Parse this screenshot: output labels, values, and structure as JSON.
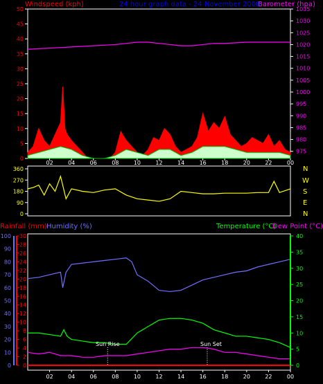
{
  "colors": {
    "background": "#000000",
    "frame": "#ffffff",
    "wind_speed": "#ff0000",
    "wind_gust_fill": "#ccffcc",
    "wind_avg": "#00c000",
    "barometer": "#ff00ff",
    "direction": "#ffff00",
    "title": "#0000ff",
    "rainfall": "#ff0000",
    "humidity": "#7070ff",
    "temperature": "#00ff00",
    "dew_point": "#ff00ff",
    "sun_marker": "#ffffff"
  },
  "header": {
    "windspeed_label": "Windspeed (kph)",
    "title": "24 hour graph data - 24 November 2008",
    "barometer_label": "Barometer (hpa)"
  },
  "bottom_labels": {
    "rainfall": "Rainfall (mm)",
    "humidity": "Humidity (%)",
    "temperature": "Temperature (°C)",
    "dew_point": "Dew Point (°C)",
    "sun_rise": "Sun Rise",
    "sun_set": "Sun Set"
  },
  "direction_letters": [
    "N",
    "W",
    "S",
    "E",
    "N"
  ],
  "chart_data": [
    {
      "type": "line",
      "name": "wind-barometer",
      "x_hours": [
        0,
        24
      ],
      "x_tick_labels": [
        "02",
        "04",
        "06",
        "08",
        "10",
        "12",
        "14",
        "16",
        "18",
        "20",
        "22",
        "00"
      ],
      "left_axis": {
        "label": "Windspeed (kph)",
        "ylim": [
          0,
          50
        ],
        "ticks": [
          "0",
          "5",
          "10",
          "15",
          "20",
          "25",
          "30",
          "35",
          "40",
          "45",
          "50"
        ]
      },
      "right_axis": {
        "label": "Barometer (hpa)",
        "ylim": [
          972,
          1035
        ],
        "ticks": [
          "975",
          "980",
          "985",
          "990",
          "995",
          "1000",
          "1005",
          "1010",
          "1015",
          "1020",
          "1025",
          "1030",
          "1035"
        ]
      },
      "barometer": {
        "x": [
          0,
          2,
          4,
          6,
          8,
          9,
          10,
          11,
          12,
          13,
          14,
          15,
          16,
          17,
          18,
          20,
          22,
          24
        ],
        "y": [
          1018,
          1018.5,
          1019,
          1019.5,
          1020,
          1020.5,
          1021,
          1021,
          1020.5,
          1020,
          1019.5,
          1019.5,
          1020,
          1020.5,
          1020.5,
          1021,
          1021,
          1021
        ]
      },
      "wind_gust": {
        "x": [
          0,
          0.5,
          1,
          1.5,
          2,
          2.5,
          3,
          3.2,
          3.4,
          3.6,
          4,
          4.5,
          5,
          5.5,
          6,
          6.5,
          7,
          7.5,
          8,
          8.5,
          9,
          9.5,
          10,
          10.5,
          11,
          11.5,
          12,
          12.5,
          13,
          13.5,
          14,
          14.5,
          15,
          15.5,
          16,
          16.5,
          17,
          17.5,
          18,
          18.5,
          19,
          19.5,
          20,
          20.5,
          21,
          21.5,
          22,
          22.5,
          23,
          23.5,
          24
        ],
        "y": [
          2,
          4,
          10,
          6,
          4,
          8,
          12,
          24,
          10,
          8,
          6,
          4,
          2,
          0,
          0,
          0,
          0,
          0,
          2,
          9,
          6,
          4,
          2,
          1,
          3,
          7,
          6,
          10,
          8,
          4,
          2,
          3,
          4,
          7,
          15,
          9,
          12,
          10,
          14,
          8,
          6,
          4,
          5,
          7,
          6,
          5,
          8,
          4,
          6,
          3,
          2
        ]
      },
      "wind_avg": {
        "x": [
          0,
          1,
          2,
          3,
          4,
          5,
          6,
          7,
          8,
          9,
          10,
          11,
          12,
          13,
          14,
          15,
          16,
          17,
          18,
          19,
          20,
          21,
          22,
          23,
          24
        ],
        "y": [
          1,
          2,
          3,
          4,
          3,
          1,
          0,
          0,
          1,
          3,
          2,
          1,
          3,
          3,
          1,
          2,
          4,
          4,
          4,
          3,
          2,
          2,
          2,
          2,
          1
        ]
      }
    },
    {
      "type": "line",
      "name": "wind-direction",
      "ylim": [
        0,
        360
      ],
      "ticks": [
        "0",
        "90",
        "180",
        "270",
        "360"
      ],
      "x": [
        0,
        0.5,
        1,
        1.5,
        2,
        2.5,
        3,
        3.5,
        4,
        5,
        6,
        7,
        8,
        9,
        10,
        11,
        12,
        13,
        14,
        15,
        16,
        17,
        18,
        19,
        20,
        21,
        22,
        22.5,
        23,
        24
      ],
      "y": [
        200,
        210,
        230,
        150,
        240,
        180,
        300,
        120,
        200,
        180,
        170,
        190,
        200,
        150,
        120,
        110,
        100,
        120,
        180,
        170,
        160,
        160,
        165,
        165,
        165,
        170,
        170,
        260,
        170,
        200
      ]
    },
    {
      "type": "line",
      "name": "temp-humidity",
      "x_tick_labels": [
        "02",
        "04",
        "06",
        "08",
        "10",
        "12",
        "14",
        "16",
        "18",
        "20",
        "22",
        "00"
      ],
      "humidity_axis": {
        "ylim": [
          0,
          100
        ],
        "ticks": [
          "0",
          "10",
          "20",
          "30",
          "40",
          "50",
          "60",
          "70",
          "80",
          "90",
          "100"
        ]
      },
      "rainfall_axis": {
        "ylim": [
          0,
          30
        ],
        "ticks": [
          "0",
          "2",
          "4",
          "6",
          "8",
          "10",
          "12",
          "14",
          "16",
          "18",
          "20",
          "22",
          "24",
          "26",
          "28",
          "30"
        ]
      },
      "temperature_axis": {
        "ylim": [
          0,
          40
        ],
        "ticks": [
          "0",
          "5",
          "10",
          "15",
          "20",
          "25",
          "30",
          "35",
          "40"
        ]
      },
      "humidity": {
        "x": [
          0,
          1,
          2,
          3,
          3.2,
          3.5,
          4,
          5,
          6,
          7,
          8,
          9,
          9.5,
          10,
          11,
          12,
          13,
          14,
          15,
          16,
          17,
          18,
          19,
          20,
          21,
          22,
          23,
          24
        ],
        "y": [
          67,
          68,
          70,
          72,
          60,
          72,
          78,
          79,
          80,
          81,
          82,
          83,
          80,
          70,
          65,
          58,
          57,
          58,
          62,
          66,
          68,
          70,
          72,
          73,
          76,
          78,
          80,
          82
        ]
      },
      "temperature": {
        "x": [
          0,
          1,
          2,
          3,
          3.3,
          3.6,
          4,
          5,
          6,
          7,
          8,
          9,
          10,
          11,
          12,
          13,
          14,
          15,
          16,
          17,
          18,
          19,
          20,
          21,
          22,
          23,
          24
        ],
        "y": [
          10,
          10,
          9.5,
          9,
          11,
          9,
          8,
          7.5,
          7,
          7,
          6.5,
          6.5,
          10,
          12,
          14,
          14.5,
          14.5,
          14,
          13,
          11,
          10,
          9,
          9,
          8.5,
          8,
          7,
          5.5
        ]
      },
      "dew_point": {
        "x": [
          0,
          1,
          2,
          3,
          4,
          5,
          6,
          7,
          8,
          9,
          10,
          11,
          12,
          13,
          14,
          15,
          16,
          17,
          18,
          19,
          20,
          21,
          22,
          23,
          24
        ],
        "y": [
          4,
          3.5,
          4,
          3,
          3,
          2.5,
          2.5,
          3,
          3,
          3,
          3.5,
          4,
          4.5,
          5,
          5,
          5.5,
          5.5,
          5,
          4,
          4,
          3.5,
          3,
          2.5,
          2,
          2
        ]
      },
      "rainfall": {
        "x": [
          0,
          24
        ],
        "y": [
          0,
          0
        ]
      },
      "sun_rise_hour": 7.3,
      "sun_set_hour": 16.4
    }
  ]
}
